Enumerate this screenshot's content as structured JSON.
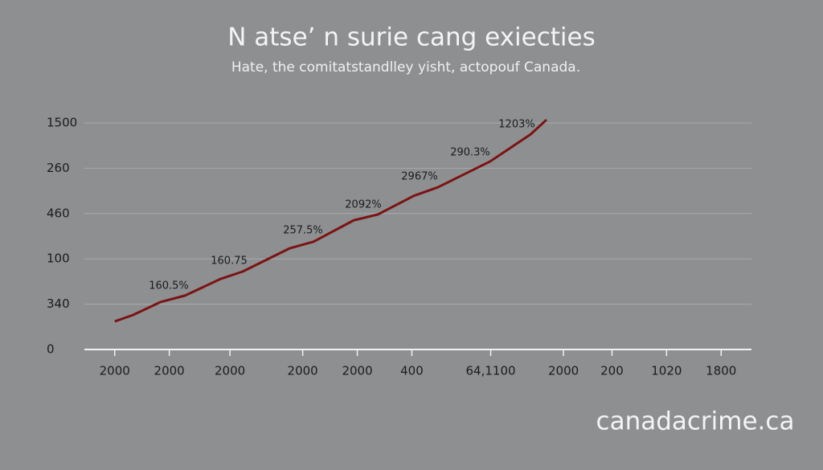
{
  "chart_data": {
    "type": "line",
    "title": "N atse’ n surie cang exiecties",
    "subtitle": "Hate, the comitatstandlley yisht, actopouf Canada.",
    "watermark": "canadacrime.ca",
    "x": [
      0,
      0.3,
      0.76,
      1.16,
      1.75,
      2.11,
      2.88,
      3.28,
      3.94,
      4.34,
      4.93,
      5.33,
      6.19,
      6.86,
      7.12
    ],
    "series": [
      {
        "color": "#7a1414",
        "values": [
          0.62,
          0.76,
          1.05,
          1.19,
          1.56,
          1.72,
          2.23,
          2.38,
          2.85,
          2.98,
          3.39,
          3.58,
          4.15,
          4.75,
          5.07
        ]
      }
    ],
    "annotations": [
      "160.5%",
      "160.75",
      "257.5%",
      "2092%",
      "2967%",
      "290.3%",
      "1203%"
    ],
    "xlim": [
      -0.5,
      10.5
    ],
    "xticks": [
      {
        "value": 0,
        "label": "2000"
      },
      {
        "value": 0.9,
        "label": "2000"
      },
      {
        "value": 1.9,
        "label": "2000"
      },
      {
        "value": 3.1,
        "label": "2000"
      },
      {
        "value": 4,
        "label": "2000"
      },
      {
        "value": 4.9,
        "label": "400"
      },
      {
        "value": 6.2,
        "label": "64,1100"
      },
      {
        "value": 7.4,
        "label": "2000"
      },
      {
        "value": 8.2,
        "label": "200"
      },
      {
        "value": 9.1,
        "label": "1020"
      },
      {
        "value": 10,
        "label": "1800"
      }
    ],
    "ylim": [
      0,
      5
    ],
    "yticks": [
      0,
      {
        "value": 1,
        "label": "340"
      },
      {
        "value": 2,
        "label": "100"
      },
      {
        "value": 3,
        "label": "460"
      },
      {
        "value": 4,
        "label": "260"
      },
      {
        "value": 5,
        "label": "1500"
      }
    ],
    "grid": true
  }
}
